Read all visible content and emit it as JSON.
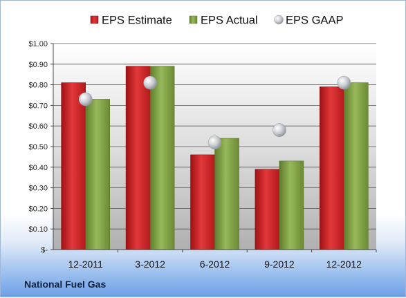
{
  "chart_data": {
    "type": "bar",
    "categories": [
      "12-2011",
      "3-2012",
      "6-2012",
      "9-2012",
      "12-2012"
    ],
    "series": [
      {
        "name": "EPS Estimate",
        "kind": "bar",
        "color": "#d7282a",
        "values": [
          0.81,
          0.89,
          0.46,
          0.39,
          0.79
        ]
      },
      {
        "name": "EPS Actual",
        "kind": "bar",
        "color": "#86a74a",
        "values": [
          0.73,
          0.89,
          0.54,
          0.43,
          0.81
        ]
      },
      {
        "name": "EPS GAAP",
        "kind": "marker",
        "color": "#b9bcc4",
        "values": [
          0.73,
          0.81,
          0.52,
          0.58,
          0.81
        ]
      }
    ],
    "yticks": [
      "$-",
      "$0.10",
      "$0.20",
      "$0.30",
      "$0.40",
      "$0.50",
      "$0.60",
      "$0.70",
      "$0.80",
      "$0.90",
      "$1.00"
    ],
    "ylim": [
      0,
      1.0
    ],
    "ystep": 0.1,
    "grid": true,
    "legend": "top-center"
  },
  "footer": {
    "company": "National Fuel Gas"
  }
}
